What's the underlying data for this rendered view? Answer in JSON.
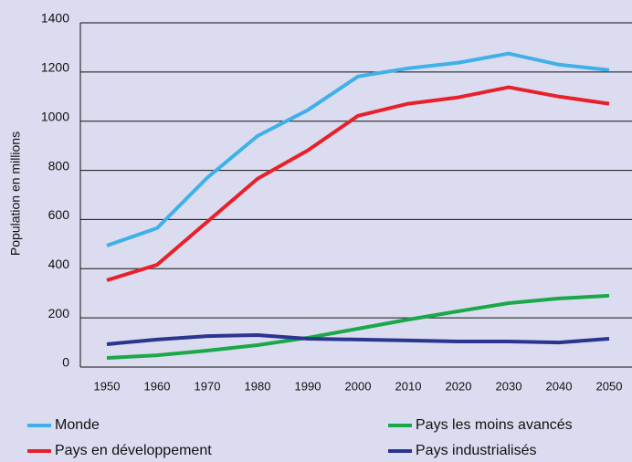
{
  "chart_data": {
    "type": "line",
    "y_label": "Population en millions",
    "x": [
      1950,
      1960,
      1970,
      1980,
      1990,
      2000,
      2010,
      2020,
      2030,
      2040,
      2050
    ],
    "xlim": [
      1950,
      2050
    ],
    "xticks": [
      1950,
      1960,
      1970,
      1980,
      1990,
      2000,
      2010,
      2020,
      2030,
      2040,
      2050
    ],
    "ylim": [
      0,
      1400
    ],
    "yticks": [
      0,
      200,
      400,
      600,
      800,
      1000,
      1200,
      1400
    ],
    "grid": true,
    "legend": "bottom",
    "series": [
      {
        "name": "Monde",
        "color": "#3fb0e8",
        "values": [
          494,
          565,
          770,
          940,
          1045,
          1182,
          1215,
          1238,
          1275,
          1230,
          1208
        ]
      },
      {
        "name": "Pays en développement",
        "color": "#e8202a",
        "values": [
          353,
          416,
          591,
          766,
          881,
          1022,
          1071,
          1097,
          1138,
          1100,
          1071
        ]
      },
      {
        "name": "Pays les moins avancés",
        "color": "#1aa84a",
        "values": [
          37,
          48,
          67,
          89,
          119,
          156,
          193,
          227,
          260,
          279,
          290
        ]
      },
      {
        "name": "Pays industrialisés",
        "color": "#2a3590",
        "values": [
          93,
          112,
          126,
          130,
          115,
          112,
          108,
          104,
          104,
          100,
          115
        ]
      }
    ]
  }
}
